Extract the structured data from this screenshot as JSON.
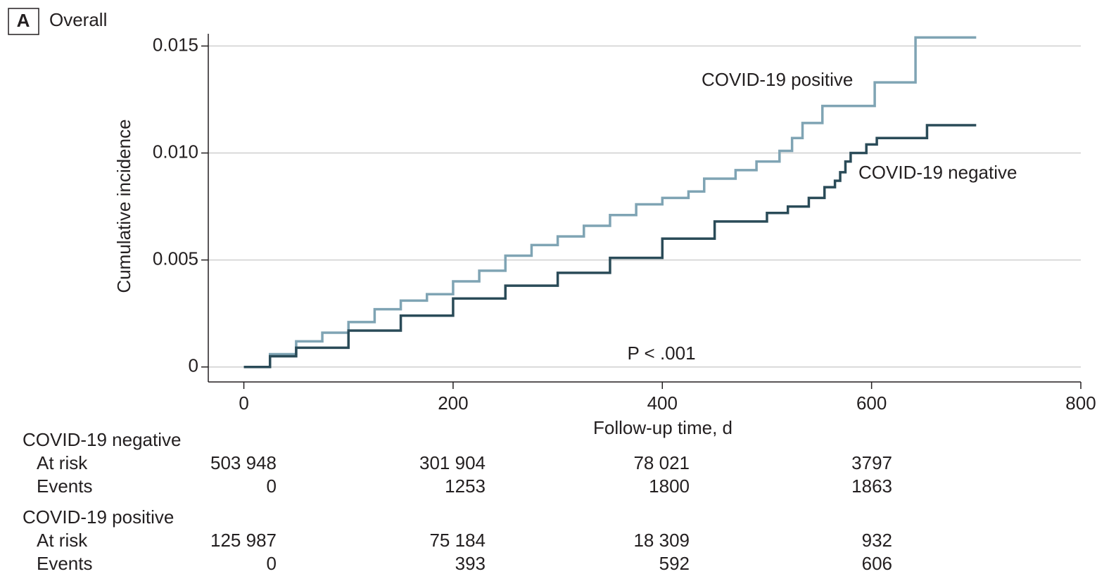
{
  "chart_data": {
    "type": "step",
    "panel_label": "A",
    "title": "Overall",
    "x_label": "Follow-up time, d",
    "y_label": "Cumulative incidence",
    "annotation": "P < .001",
    "xlim": [
      -34,
      800
    ],
    "xticks": [
      0,
      200,
      400,
      600,
      800
    ],
    "ylim": [
      -0.0007,
      0.016
    ],
    "yticks": [
      0,
      0.005,
      {
        "value": 0.01,
        "label": "0.010"
      },
      0.015
    ],
    "grid": true,
    "series": [
      {
        "name": "COVID-19 positive",
        "color": "#7fa4b4",
        "x": [
          0,
          25,
          50,
          75,
          100,
          125,
          150,
          175,
          200,
          225,
          250,
          275,
          300,
          325,
          350,
          375,
          400,
          425,
          440,
          470,
          490,
          512,
          524,
          534,
          553,
          603,
          642,
          700
        ],
        "values": [
          0,
          0.0006,
          0.0012,
          0.0016,
          0.0021,
          0.0027,
          0.0031,
          0.0034,
          0.004,
          0.0045,
          0.0052,
          0.0057,
          0.0061,
          0.0066,
          0.0071,
          0.0076,
          0.0079,
          0.0082,
          0.0088,
          0.0092,
          0.0096,
          0.0101,
          0.0107,
          0.0114,
          0.0122,
          0.0133,
          0.0154,
          0.0154
        ]
      },
      {
        "name": "COVID-19 negative",
        "color": "#2a4b58",
        "x": [
          0,
          25,
          50,
          100,
          150,
          200,
          250,
          300,
          350,
          400,
          450,
          500,
          520,
          540,
          555,
          565,
          570,
          575,
          580,
          595,
          605,
          653,
          700
        ],
        "values": [
          0,
          0.0005,
          0.0009,
          0.0017,
          0.0024,
          0.0032,
          0.0038,
          0.0044,
          0.0051,
          0.006,
          0.0068,
          0.0072,
          0.0075,
          0.0079,
          0.0084,
          0.0087,
          0.0091,
          0.0096,
          0.01,
          0.0104,
          0.0107,
          0.0113,
          0.0113
        ]
      }
    ],
    "risk_table": [
      {
        "name": "COVID-19 negative",
        "rows": [
          {
            "label": "At risk",
            "values": [
              "503 948",
              "301 904",
              "78 021",
              "3797"
            ]
          },
          {
            "label": "Events",
            "values": [
              "0",
              "1253",
              "1800",
              "1863"
            ]
          }
        ]
      },
      {
        "name": "COVID-19 positive",
        "rows": [
          {
            "label": "At risk",
            "values": [
              "125 987",
              "75 184",
              "18 309",
              "932"
            ]
          },
          {
            "label": "Events",
            "values": [
              "0",
              "393",
              "592",
              "606"
            ]
          }
        ]
      }
    ]
  }
}
